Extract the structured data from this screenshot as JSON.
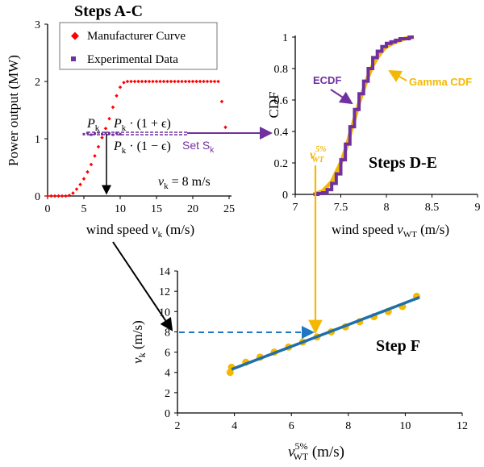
{
  "colors": {
    "manufacturer": "#ff0000",
    "experimental": "#7030a0",
    "ecdf": "#7030a0",
    "gamma": "#f5b800",
    "fit_line": "#1f6fa8",
    "dots": "#f5b800",
    "dashed": "#1f77c4",
    "arrow": "#000000"
  },
  "panel_abc": {
    "title": "Steps A-C",
    "ylabel": "Power output (MW)",
    "xlabel_main": "wind speed ",
    "xlabel_var": "v",
    "xlabel_sub": "k",
    "xlabel_unit": " (m/s)",
    "legend": {
      "manufacturer": "Manufacturer Curve",
      "experimental": "Experimental Data"
    },
    "annot_pk": "P",
    "annot_pk_sub": "k",
    "annot_plus": "P",
    "annot_plus_sub": "k",
    "annot_plus_rest": " · (1 + ϵ)",
    "annot_minus": "P",
    "annot_minus_sub": "k",
    "annot_minus_rest": " · (1 − ϵ)",
    "set_label": "Set S",
    "set_sub": "k",
    "vk_label": "v",
    "vk_sub": "k",
    "vk_rest": " = 8 m/s"
  },
  "panel_de": {
    "title": "Steps D-E",
    "ylabel": "CDF",
    "xlabel_main": "wind speed ",
    "xlabel_var": "v",
    "xlabel_sub": "WT",
    "xlabel_unit": " (m/s)",
    "ecdf_label": "ECDF",
    "gamma_label": "Gamma CDF",
    "v5_var": "v",
    "v5_sup": "5%",
    "v5_sub": "WT"
  },
  "panel_f": {
    "title": "Step F",
    "ylabel_var": "v",
    "ylabel_sub": "k",
    "ylabel_unit": " (m/s)",
    "xlabel_var": "v",
    "xlabel_sup": "5%",
    "xlabel_sub": "WT",
    "xlabel_unit": " (m/s)"
  },
  "chart_data": [
    {
      "type": "scatter",
      "title": "Steps A-C",
      "xlabel": "wind speed v_k (m/s)",
      "ylabel": "Power output (MW)",
      "xlim": [
        0,
        25
      ],
      "ylim": [
        0,
        3
      ],
      "xticks": [
        "0",
        "5",
        "10",
        "15",
        "20",
        "25"
      ],
      "yticks": [
        "0",
        "1",
        "2",
        "3"
      ],
      "legend_position": "top-left",
      "series": [
        {
          "name": "Manufacturer Curve",
          "x": [
            0,
            0.5,
            1,
            1.5,
            2,
            2.5,
            3,
            3.5,
            4,
            4.5,
            5,
            5.5,
            6,
            6.5,
            7,
            7.5,
            8,
            8.5,
            9,
            9.5,
            10,
            10.5,
            11,
            11.5,
            12,
            12.5,
            13,
            13.5,
            14,
            14.5,
            15,
            15.5,
            16,
            16.5,
            17,
            17.5,
            18,
            18.5,
            19,
            19.5,
            20,
            20.5,
            21,
            21.5,
            22,
            22.5,
            23,
            23.5,
            24,
            24.5
          ],
          "y": [
            0,
            0,
            0,
            0,
            0,
            0,
            0.01,
            0.05,
            0.12,
            0.2,
            0.3,
            0.42,
            0.55,
            0.7,
            0.86,
            1.02,
            1.18,
            1.35,
            1.55,
            1.75,
            1.9,
            1.98,
            2.0,
            2.0,
            2.0,
            2.0,
            2.0,
            2.0,
            2.0,
            2.0,
            2.0,
            2.0,
            2.0,
            2.0,
            2.0,
            2.0,
            2.0,
            2.0,
            2.0,
            2.0,
            2.0,
            2.0,
            2.0,
            2.0,
            2.0,
            2.0,
            2.0,
            2.0,
            1.65,
            1.2
          ]
        },
        {
          "name": "Experimental Data",
          "x": [
            5.0,
            5.5,
            6.0,
            6.5,
            7.0,
            7.5,
            8.0,
            8.5,
            9.0,
            9.5,
            10.0
          ],
          "y": [
            1.08,
            1.1,
            1.07,
            1.09,
            1.11,
            1.08,
            1.1,
            1.09,
            1.07,
            1.1,
            1.08
          ]
        }
      ]
    },
    {
      "type": "line",
      "title": "Steps D-E",
      "xlabel": "wind speed v_WT (m/s)",
      "ylabel": "CDF",
      "xlim": [
        7,
        9
      ],
      "ylim": [
        0,
        1
      ],
      "xticks": [
        "7",
        "7.5",
        "8",
        "8.5",
        "9"
      ],
      "yticks": [
        "0",
        "0.2",
        "0.4",
        "0.6",
        "0.8",
        "1"
      ],
      "series": [
        {
          "name": "ECDF",
          "x": [
            7.2,
            7.25,
            7.3,
            7.35,
            7.4,
            7.45,
            7.5,
            7.55,
            7.6,
            7.65,
            7.7,
            7.75,
            7.8,
            7.85,
            7.9,
            7.95,
            8.0,
            8.05,
            8.1,
            8.15,
            8.2,
            8.25,
            8.3
          ],
          "y": [
            0,
            0.005,
            0.01,
            0.03,
            0.07,
            0.13,
            0.22,
            0.32,
            0.43,
            0.54,
            0.64,
            0.72,
            0.8,
            0.87,
            0.91,
            0.94,
            0.96,
            0.97,
            0.98,
            0.99,
            0.99,
            1.0,
            1.0
          ]
        },
        {
          "name": "Gamma CDF",
          "x": [
            7.2,
            7.3,
            7.4,
            7.5,
            7.55,
            7.6,
            7.65,
            7.7,
            7.75,
            7.8,
            7.85,
            7.9,
            7.95,
            8.0,
            8.1,
            8.2,
            8.3
          ],
          "y": [
            0,
            0.02,
            0.08,
            0.2,
            0.28,
            0.38,
            0.48,
            0.58,
            0.67,
            0.75,
            0.82,
            0.87,
            0.91,
            0.94,
            0.97,
            0.99,
            1.0
          ]
        }
      ]
    },
    {
      "type": "scatter",
      "title": "Step F",
      "xlabel": "v_WT^5% (m/s)",
      "ylabel": "v_k (m/s)",
      "xlim": [
        2,
        12
      ],
      "ylim": [
        0,
        14
      ],
      "xticks": [
        "2",
        "4",
        "6",
        "8",
        "10",
        "12"
      ],
      "yticks": [
        "0",
        "2",
        "4",
        "6",
        "8",
        "10",
        "12",
        "14"
      ],
      "series": [
        {
          "name": "",
          "x": [
            3.85,
            3.9,
            4.4,
            4.9,
            5.4,
            5.9,
            6.4,
            6.9,
            7.4,
            7.9,
            8.4,
            8.9,
            9.4,
            9.9,
            10.4
          ],
          "y": [
            4.0,
            4.5,
            5.0,
            5.5,
            6.0,
            6.5,
            7.0,
            7.5,
            8.0,
            8.5,
            9.0,
            9.5,
            10.0,
            10.5,
            11.5
          ]
        }
      ],
      "fit_line": {
        "x": [
          3.9,
          10.5
        ],
        "y": [
          4.3,
          11.4
        ]
      }
    }
  ]
}
